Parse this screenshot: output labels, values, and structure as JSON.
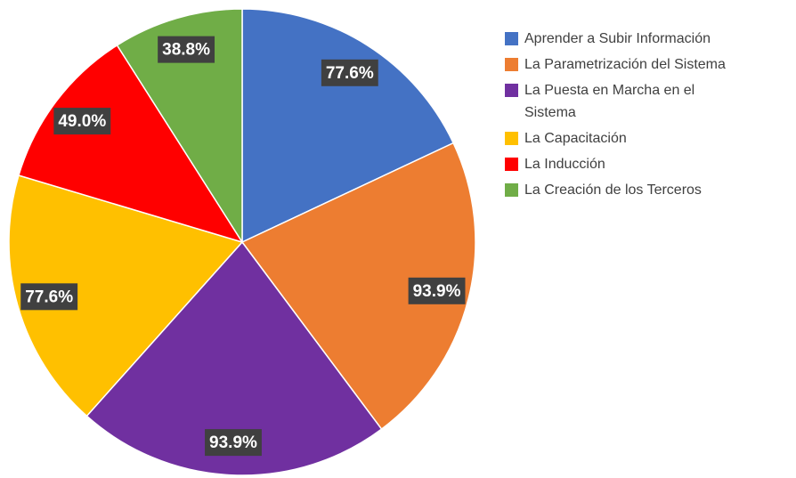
{
  "chart_data": {
    "type": "pie",
    "categories": [
      "Aprender a Subir Información",
      "La Parametrización del Sistema",
      "La Puesta en Marcha en el Sistema",
      "La Capacitación",
      "La Inducción",
      "La Creación de los Terceros"
    ],
    "values": [
      77.6,
      93.9,
      93.9,
      77.6,
      49.0,
      38.8
    ],
    "value_labels": [
      "77.6%",
      "93.9%",
      "93.9%",
      "77.6%",
      "49.0%",
      "38.8%"
    ],
    "colors": [
      "#4472c4",
      "#ed7d31",
      "#7030a0",
      "#ffc000",
      "#ff0000",
      "#70ad47"
    ],
    "legend": "right"
  }
}
